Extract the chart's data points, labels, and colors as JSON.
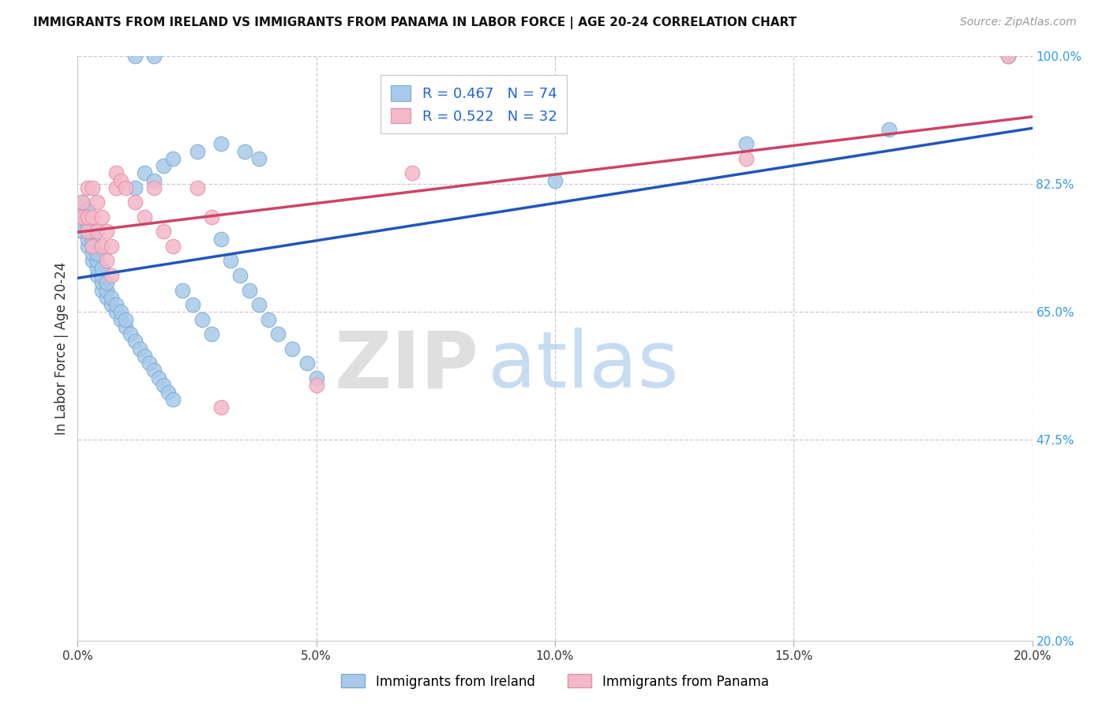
{
  "title": "IMMIGRANTS FROM IRELAND VS IMMIGRANTS FROM PANAMA IN LABOR FORCE | AGE 20-24 CORRELATION CHART",
  "source": "Source: ZipAtlas.com",
  "ylabel": "In Labor Force | Age 20-24",
  "xlim": [
    0.0,
    0.2
  ],
  "ylim": [
    0.2,
    1.0
  ],
  "xtick_labels": [
    "0.0%",
    "5.0%",
    "10.0%",
    "15.0%",
    "20.0%"
  ],
  "xtick_vals": [
    0.0,
    0.05,
    0.1,
    0.15,
    0.2
  ],
  "ytick_labels": [
    "100.0%",
    "82.5%",
    "65.0%",
    "47.5%",
    "20.0%"
  ],
  "ytick_vals": [
    1.0,
    0.825,
    0.65,
    0.475,
    0.2
  ],
  "ireland_color": "#A8CAEA",
  "panama_color": "#F5B8C8",
  "ireland_edge": "#7AAAD0",
  "panama_edge": "#E090A8",
  "trendline_ireland_color": "#2255BB",
  "trendline_panama_color": "#CC4466",
  "R_ireland": 0.467,
  "N_ireland": 74,
  "R_panama": 0.522,
  "N_panama": 32,
  "legend_label_ireland": "Immigrants from Ireland",
  "legend_label_panama": "Immigrants from Panama",
  "watermark_zip": "ZIP",
  "watermark_atlas": "atlas",
  "legend_R_color": "#2266CC",
  "ireland_x": [
    0.001,
    0.001,
    0.001,
    0.001,
    0.001,
    0.002,
    0.002,
    0.002,
    0.002,
    0.002,
    0.002,
    0.003,
    0.003,
    0.003,
    0.003,
    0.003,
    0.004,
    0.004,
    0.004,
    0.004,
    0.005,
    0.005,
    0.005,
    0.005,
    0.006,
    0.006,
    0.006,
    0.007,
    0.007,
    0.008,
    0.008,
    0.009,
    0.009,
    0.01,
    0.01,
    0.011,
    0.012,
    0.013,
    0.014,
    0.015,
    0.016,
    0.017,
    0.018,
    0.019,
    0.02,
    0.022,
    0.024,
    0.026,
    0.028,
    0.03,
    0.032,
    0.034,
    0.036,
    0.038,
    0.04,
    0.042,
    0.045,
    0.048,
    0.05,
    0.012,
    0.014,
    0.016,
    0.018,
    0.02,
    0.025,
    0.03,
    0.035,
    0.038,
    0.012,
    0.016,
    0.1,
    0.14,
    0.17,
    0.195
  ],
  "ireland_y": [
    0.76,
    0.77,
    0.78,
    0.79,
    0.8,
    0.74,
    0.75,
    0.76,
    0.77,
    0.78,
    0.79,
    0.72,
    0.73,
    0.74,
    0.75,
    0.76,
    0.7,
    0.71,
    0.72,
    0.73,
    0.68,
    0.69,
    0.7,
    0.71,
    0.67,
    0.68,
    0.69,
    0.66,
    0.67,
    0.65,
    0.66,
    0.64,
    0.65,
    0.63,
    0.64,
    0.62,
    0.61,
    0.6,
    0.59,
    0.58,
    0.57,
    0.56,
    0.55,
    0.54,
    0.53,
    0.68,
    0.66,
    0.64,
    0.62,
    0.75,
    0.72,
    0.7,
    0.68,
    0.66,
    0.64,
    0.62,
    0.6,
    0.58,
    0.56,
    0.82,
    0.84,
    0.83,
    0.85,
    0.86,
    0.87,
    0.88,
    0.87,
    0.86,
    1.0,
    1.0,
    0.83,
    0.88,
    0.9,
    1.0
  ],
  "panama_x": [
    0.001,
    0.001,
    0.002,
    0.002,
    0.002,
    0.003,
    0.003,
    0.003,
    0.004,
    0.004,
    0.005,
    0.005,
    0.006,
    0.006,
    0.007,
    0.007,
    0.008,
    0.008,
    0.009,
    0.01,
    0.012,
    0.014,
    0.016,
    0.018,
    0.02,
    0.025,
    0.028,
    0.03,
    0.05,
    0.07,
    0.14,
    0.195
  ],
  "panama_y": [
    0.78,
    0.8,
    0.76,
    0.78,
    0.82,
    0.74,
    0.78,
    0.82,
    0.76,
    0.8,
    0.74,
    0.78,
    0.72,
    0.76,
    0.7,
    0.74,
    0.82,
    0.84,
    0.83,
    0.82,
    0.8,
    0.78,
    0.82,
    0.76,
    0.74,
    0.82,
    0.78,
    0.52,
    0.55,
    0.84,
    0.86,
    1.0
  ]
}
